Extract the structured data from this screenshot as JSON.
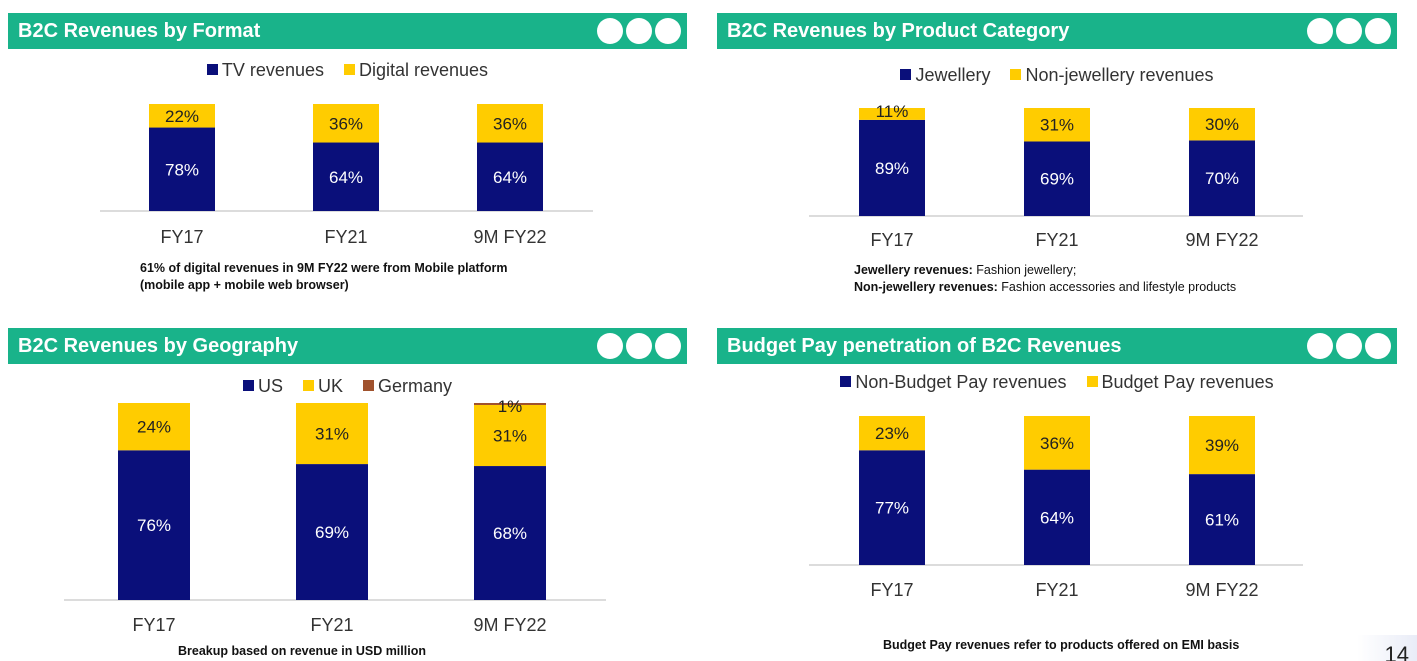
{
  "theme": {
    "header_color": "#19b38a",
    "dark_blue": "#0a0f7a",
    "yellow": "#ffcc00",
    "brown": "#a0522d",
    "axis_color": "#d0d0d0"
  },
  "page_number": "14",
  "panels": [
    {
      "title": "B2C Revenues by Format",
      "note_lines": [
        [
          {
            "bold": true,
            "text": "61% of digital revenues in 9M FY22 were from Mobile platform"
          }
        ],
        [
          {
            "bold": true,
            "text": "(mobile app + mobile web browser)"
          }
        ]
      ],
      "chart_data": {
        "type": "bar",
        "stacked": true,
        "categories": [
          "FY17",
          "FY21",
          "9M FY22"
        ],
        "series": [
          {
            "name": "TV revenues",
            "color": "#0a0f7a",
            "label_color": "#ffffff",
            "values": [
              78,
              64,
              64
            ],
            "labels": [
              "78%",
              "64%",
              "64%"
            ]
          },
          {
            "name": "Digital revenues",
            "color": "#ffcc00",
            "label_color": "#222222",
            "values": [
              22,
              36,
              36
            ],
            "labels": [
              "22%",
              "36%",
              "36%"
            ]
          }
        ],
        "ylim": [
          0,
          100
        ]
      }
    },
    {
      "title": "B2C Revenues by Product Category",
      "note_lines": [
        [
          {
            "bold": true,
            "text": "Jewellery revenues:"
          },
          {
            "bold": false,
            "text": " Fashion jewellery;"
          }
        ],
        [
          {
            "bold": true,
            "text": "Non-jewellery revenues:"
          },
          {
            "bold": false,
            "text": " Fashion accessories and lifestyle products"
          }
        ]
      ],
      "chart_data": {
        "type": "bar",
        "stacked": true,
        "categories": [
          "FY17",
          "FY21",
          "9M FY22"
        ],
        "series": [
          {
            "name": "Jewellery",
            "color": "#0a0f7a",
            "label_color": "#ffffff",
            "values": [
              89,
              69,
              70
            ],
            "labels": [
              "89%",
              "69%",
              "70%"
            ]
          },
          {
            "name": "Non-jewellery revenues",
            "color": "#ffcc00",
            "label_color": "#222222",
            "values": [
              11,
              31,
              30
            ],
            "labels": [
              "11%",
              "31%",
              "30%"
            ]
          }
        ],
        "ylim": [
          0,
          100
        ]
      }
    },
    {
      "title": "B2C Revenues by Geography",
      "note_lines": [
        [
          {
            "bold": true,
            "text": "Breakup based on revenue in USD million"
          }
        ]
      ],
      "chart_data": {
        "type": "bar",
        "stacked": true,
        "categories": [
          "FY17",
          "FY21",
          "9M FY22"
        ],
        "series": [
          {
            "name": "US",
            "color": "#0a0f7a",
            "label_color": "#ffffff",
            "values": [
              76,
              69,
              68
            ],
            "labels": [
              "76%",
              "69%",
              "68%"
            ]
          },
          {
            "name": "UK",
            "color": "#ffcc00",
            "label_color": "#222222",
            "values": [
              24,
              31,
              31
            ],
            "labels": [
              "24%",
              "31%",
              "31%"
            ]
          },
          {
            "name": "Germany",
            "color": "#a0522d",
            "label_color": "#222222",
            "values": [
              0,
              0,
              1
            ],
            "labels": [
              "",
              "",
              "1%"
            ]
          }
        ],
        "ylim": [
          0,
          100
        ]
      }
    },
    {
      "title": "Budget Pay penetration of B2C Revenues",
      "note_lines": [
        [
          {
            "bold": true,
            "text": "Budget Pay revenues refer to products offered on EMI basis"
          }
        ]
      ],
      "chart_data": {
        "type": "bar",
        "stacked": true,
        "categories": [
          "FY17",
          "FY21",
          "9M FY22"
        ],
        "series": [
          {
            "name": "Non-Budget Pay revenues",
            "color": "#0a0f7a",
            "label_color": "#ffffff",
            "values": [
              77,
              64,
              61
            ],
            "labels": [
              "77%",
              "64%",
              "61%"
            ]
          },
          {
            "name": "Budget Pay revenues",
            "color": "#ffcc00",
            "label_color": "#222222",
            "values": [
              23,
              36,
              39
            ],
            "labels": [
              "23%",
              "36%",
              "39%"
            ]
          }
        ],
        "ylim": [
          0,
          100
        ]
      }
    }
  ]
}
